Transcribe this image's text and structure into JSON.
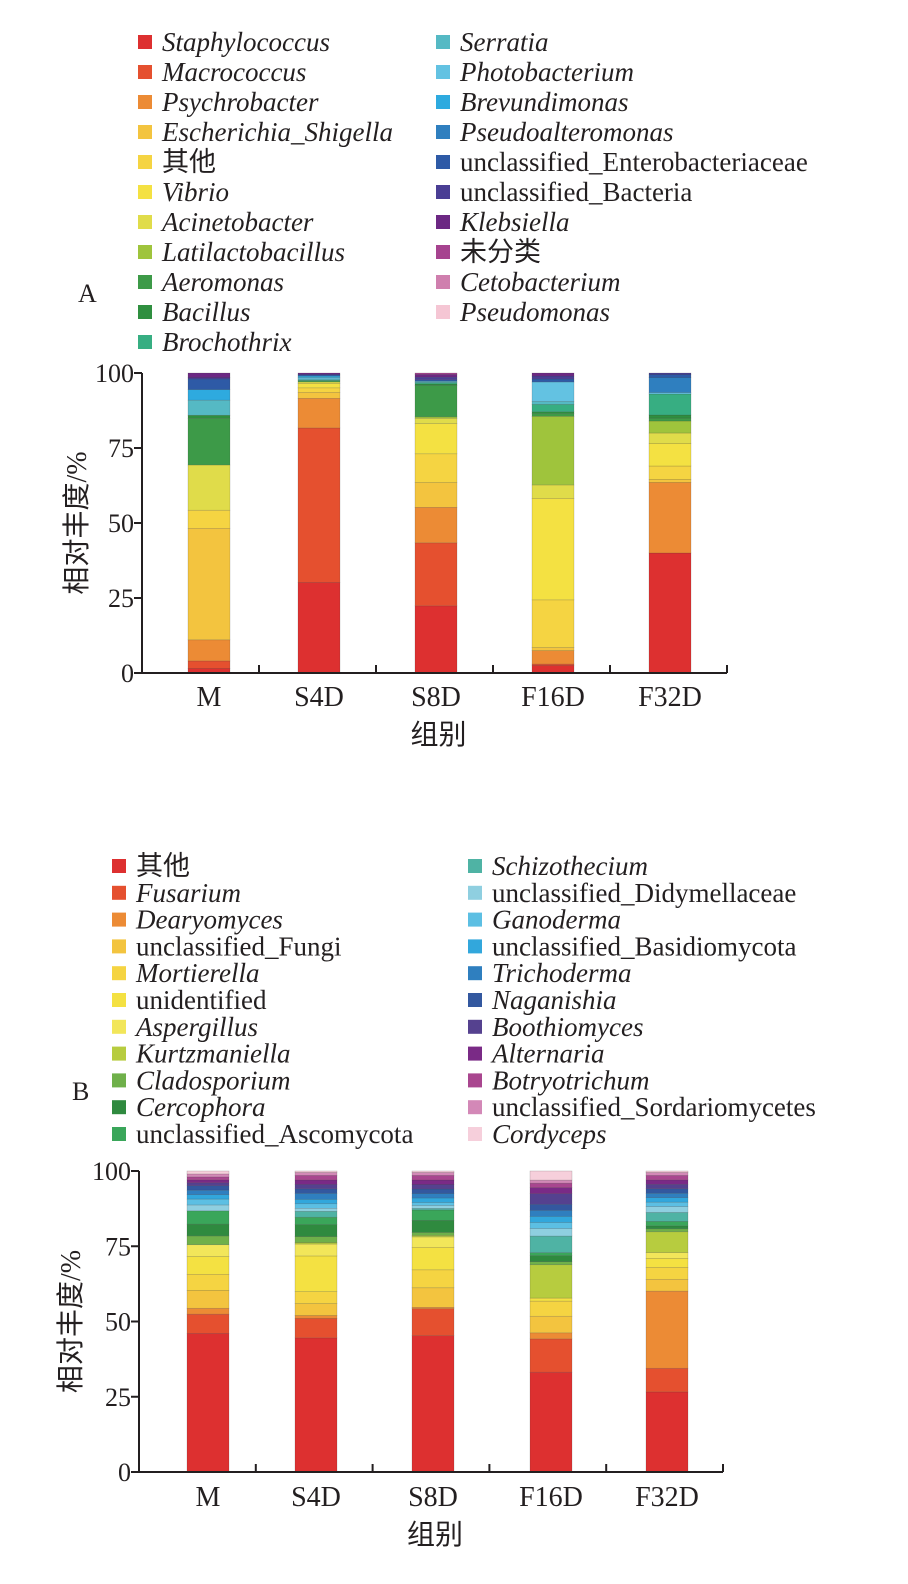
{
  "chart_data": [
    {
      "panel": "A",
      "type": "bar",
      "stacked": true,
      "categories": [
        "M",
        "S4D",
        "S8D",
        "F16D",
        "F32D"
      ],
      "xlabel": "组别",
      "ylabel": "相对丰度/%",
      "ylim": [
        0,
        100
      ],
      "yticks": [
        "0",
        "25",
        "50",
        "75",
        "100"
      ],
      "legend_columns": 2,
      "series": [
        {
          "name": "Staphylococcus",
          "italic": true,
          "color": "#dd3030",
          "values": [
            1.5,
            30.5,
            24.5,
            2.5,
            40
          ]
        },
        {
          "name": "Macrococcus",
          "italic": true,
          "color": "#e5502f",
          "values": [
            2.5,
            52,
            23,
            0.5,
            0
          ]
        },
        {
          "name": "Psychrobacter",
          "italic": true,
          "color": "#ec8b35",
          "values": [
            7,
            10,
            13,
            4.5,
            23.5
          ]
        },
        {
          "name": "Escherichia_Shigella",
          "italic": true,
          "color": "#f3c43f",
          "values": [
            37,
            2,
            9,
            1,
            1
          ]
        },
        {
          "name": "其他",
          "italic": false,
          "color": "#f5d442",
          "values": [
            6,
            1.5,
            10.5,
            16,
            4.5
          ]
        },
        {
          "name": "Vibrio",
          "italic": true,
          "color": "#f4e142",
          "values": [
            0,
            1.5,
            11,
            34,
            7.5
          ]
        },
        {
          "name": "Acinetobacter",
          "italic": true,
          "color": "#e0dc4a",
          "values": [
            15,
            0.5,
            2,
            4.5,
            3.5
          ]
        },
        {
          "name": "Latilactobacillus",
          "italic": true,
          "color": "#9fc43c",
          "values": [
            0,
            0,
            0.5,
            23,
            4
          ]
        },
        {
          "name": "Aeromonas",
          "italic": true,
          "color": "#3d9a48",
          "values": [
            15.5,
            0.5,
            11.5,
            1,
            1
          ]
        },
        {
          "name": "Bacillus",
          "italic": true,
          "color": "#2f8f3f",
          "values": [
            1,
            0,
            0.5,
            0.5,
            1
          ]
        },
        {
          "name": "Brochothrix",
          "italic": true,
          "color": "#37ae82",
          "values": [
            0,
            0,
            0.5,
            2.5,
            7
          ]
        },
        {
          "name": "Serratia",
          "italic": true,
          "color": "#55b9c4",
          "values": [
            5,
            0.5,
            0.5,
            1,
            0
          ]
        },
        {
          "name": "Photobacterium",
          "italic": true,
          "color": "#63c2e2",
          "values": [
            0,
            0.5,
            0,
            6.5,
            0.5
          ]
        },
        {
          "name": "Brevundimonas",
          "italic": true,
          "color": "#2eaadf",
          "values": [
            3.5,
            0.5,
            0,
            0,
            0
          ]
        },
        {
          "name": "Pseudoalteromonas",
          "italic": true,
          "color": "#2f7fbf",
          "values": [
            0,
            0,
            0,
            0,
            5
          ]
        },
        {
          "name": "unclassified_Enterobacteriaceae",
          "italic": false,
          "color": "#2e5aa6",
          "values": [
            3.5,
            0.5,
            0.5,
            1,
            1
          ]
        },
        {
          "name": "unclassified_Bacteria",
          "italic": false,
          "color": "#4a3e94",
          "values": [
            0.5,
            0,
            1,
            1,
            0.5
          ]
        },
        {
          "name": "Klebsiella",
          "italic": true,
          "color": "#6c2883",
          "values": [
            1.5,
            0.5,
            1,
            1,
            0
          ]
        },
        {
          "name": "未分类",
          "italic": false,
          "color": "#a6438f",
          "values": [
            0,
            0,
            0.5,
            0,
            0
          ]
        },
        {
          "name": "Cetobacterium",
          "italic": true,
          "color": "#cf7fae",
          "values": [
            0,
            0,
            0,
            0,
            0
          ]
        },
        {
          "name": "Pseudomonas",
          "italic": true,
          "color": "#f5c6d4",
          "values": [
            0,
            0,
            0,
            0,
            0
          ]
        }
      ]
    },
    {
      "panel": "B",
      "type": "bar",
      "stacked": true,
      "categories": [
        "M",
        "S4D",
        "S8D",
        "F16D",
        "F32D"
      ],
      "xlabel": "组别",
      "ylabel": "相对丰度/%",
      "ylim": [
        0,
        100
      ],
      "yticks": [
        "0",
        "25",
        "50",
        "75",
        "100"
      ],
      "legend_columns": 2,
      "series": [
        {
          "name": "其他",
          "italic": false,
          "color": "#dd3030",
          "values": [
            47,
            45,
            45.5,
            33,
            27
          ]
        },
        {
          "name": "Fusarium",
          "italic": true,
          "color": "#e5502f",
          "values": [
            6.5,
            6.5,
            9,
            11,
            8
          ]
        },
        {
          "name": "Dearyomyces",
          "italic": true,
          "color": "#ec8b35",
          "values": [
            2,
            1,
            0.5,
            2,
            26
          ]
        },
        {
          "name": "unclassified_Fungi",
          "italic": false,
          "color": "#f3c43f",
          "values": [
            6,
            4,
            6.5,
            5.5,
            4
          ]
        },
        {
          "name": "Mortierella",
          "italic": true,
          "color": "#f5d442",
          "values": [
            5.5,
            4,
            6,
            5,
            4
          ]
        },
        {
          "name": "unidentified",
          "italic": false,
          "color": "#f4e142",
          "values": [
            6,
            12,
            7.5,
            1,
            3
          ]
        },
        {
          "name": "Aspergillus",
          "italic": true,
          "color": "#f2e65a",
          "values": [
            4,
            4,
            3.5,
            0,
            2
          ]
        },
        {
          "name": "Kurtzmaniella",
          "italic": true,
          "color": "#b7cc3f",
          "values": [
            0,
            0.5,
            0.5,
            11,
            7
          ]
        },
        {
          "name": "Cladosporium",
          "italic": true,
          "color": "#6fb04a",
          "values": [
            3,
            2,
            1,
            1,
            1
          ]
        },
        {
          "name": "Cercophora",
          "italic": true,
          "color": "#2f8a3f",
          "values": [
            4,
            4,
            4,
            2,
            1
          ]
        },
        {
          "name": "unclassified_Ascomycota",
          "italic": false,
          "color": "#3aa65a",
          "values": [
            4.5,
            2.5,
            3.5,
            1,
            1.5
          ]
        },
        {
          "name": "Schizothecium",
          "italic": true,
          "color": "#4fb3a4",
          "values": [
            0,
            2,
            0.5,
            5.5,
            3
          ]
        },
        {
          "name": "unclassified_Didymellaceae",
          "italic": false,
          "color": "#8fcfe0",
          "values": [
            2,
            1,
            1,
            2.5,
            2
          ]
        },
        {
          "name": "Ganoderma",
          "italic": true,
          "color": "#5cbfe3",
          "values": [
            2,
            1.5,
            1,
            2,
            1.5
          ]
        },
        {
          "name": "unclassified_Basidiomycota",
          "italic": false,
          "color": "#32a7dc",
          "values": [
            1.5,
            1.5,
            1.5,
            2,
            1.5
          ]
        },
        {
          "name": "Trichoderma",
          "italic": true,
          "color": "#2f7fbf",
          "values": [
            1.5,
            2,
            1.5,
            2,
            1.5
          ]
        },
        {
          "name": "Naganishia",
          "italic": true,
          "color": "#33589f",
          "values": [
            1.5,
            1.5,
            1.5,
            2,
            1.5
          ]
        },
        {
          "name": "Boothiomyces",
          "italic": true,
          "color": "#55418f",
          "values": [
            1,
            1.5,
            1.5,
            3.5,
            1.5
          ]
        },
        {
          "name": "Alternaria",
          "italic": true,
          "color": "#7a2a86",
          "values": [
            1,
            1.5,
            1.5,
            2,
            1.5
          ]
        },
        {
          "name": "Botryotrichum",
          "italic": true,
          "color": "#a9468f",
          "values": [
            1,
            1.5,
            1.5,
            1.5,
            1.5
          ]
        },
        {
          "name": "unclassified_Sordariomycetes",
          "italic": false,
          "color": "#d388b7",
          "values": [
            1,
            1,
            1,
            1,
            1
          ]
        },
        {
          "name": "Cordyceps",
          "italic": true,
          "color": "#f6cfdb",
          "values": [
            1,
            0.5,
            0.5,
            3,
            0.5
          ]
        }
      ]
    }
  ]
}
